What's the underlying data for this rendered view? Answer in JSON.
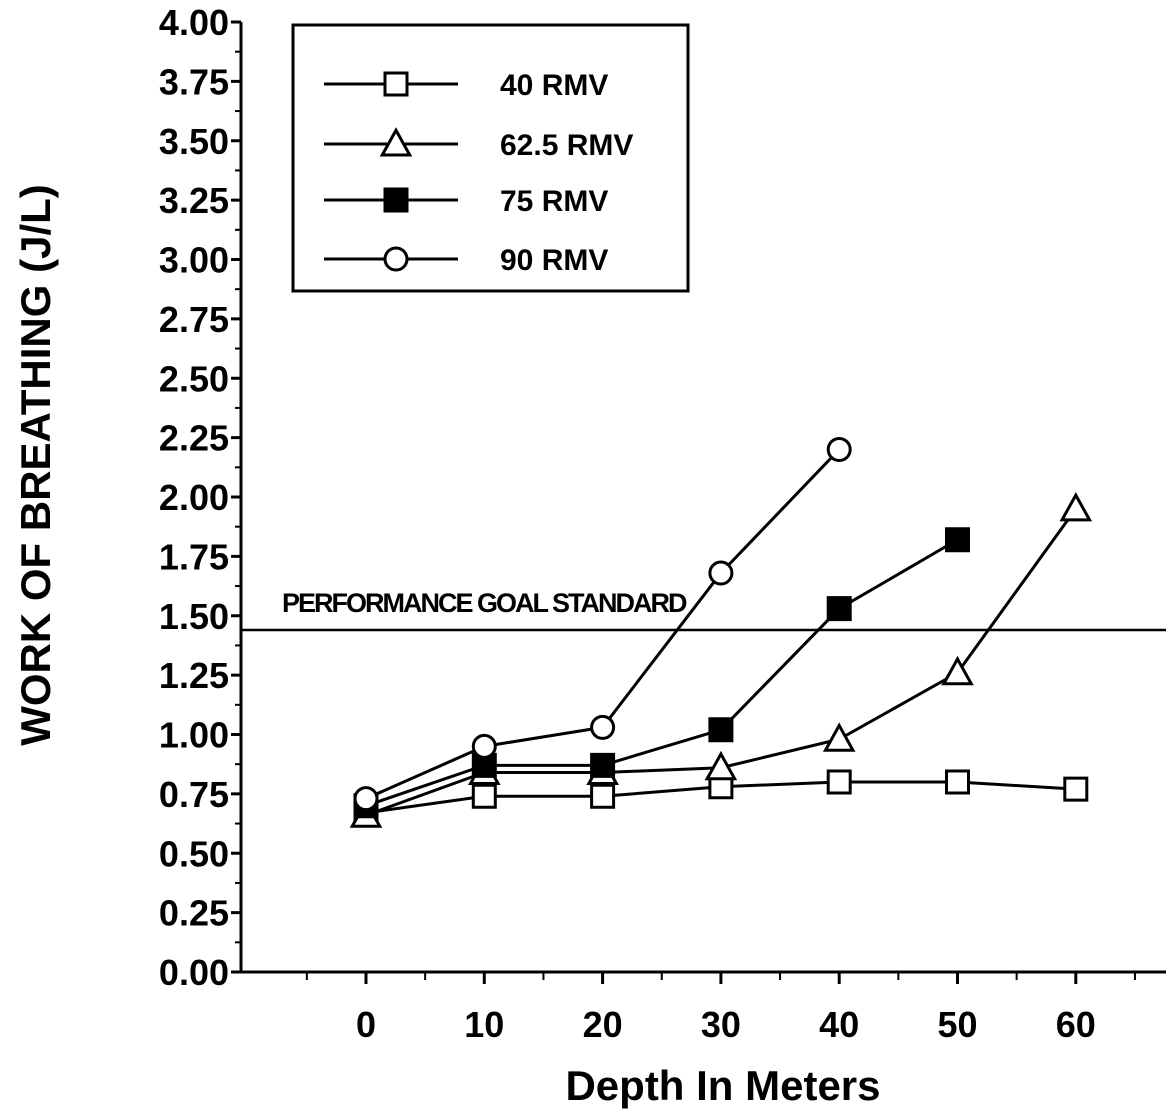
{
  "chart_data": {
    "type": "line",
    "ylabel": "WORK OF BREATHING (J/L)",
    "xlabel": "Depth In Meters",
    "ylim": [
      0,
      4
    ],
    "yticks": [
      "0.00",
      "0.25",
      "0.50",
      "0.75",
      "1.00",
      "1.25",
      "1.50",
      "1.75",
      "2.00",
      "2.25",
      "2.50",
      "2.75",
      "3.00",
      "3.25",
      "3.50",
      "3.75",
      "4.00"
    ],
    "xticks": [
      "0",
      "10",
      "20",
      "30",
      "40",
      "50",
      "60"
    ],
    "xlim": [
      -10,
      66
    ],
    "grid": false,
    "legend_position": "top-left",
    "series": [
      {
        "name": "40 RMV",
        "marker": "square-open",
        "x": [
          0,
          10,
          20,
          30,
          40,
          50,
          60
        ],
        "y": [
          0.67,
          0.74,
          0.74,
          0.78,
          0.8,
          0.8,
          0.77
        ]
      },
      {
        "name": "62.5 RMV",
        "marker": "triangle-open",
        "x": [
          0,
          10,
          20,
          30,
          40,
          50,
          60
        ],
        "y": [
          0.66,
          0.84,
          0.84,
          0.86,
          0.98,
          1.26,
          1.95
        ]
      },
      {
        "name": "75 RMV",
        "marker": "square-filled",
        "x": [
          0,
          10,
          20,
          30,
          40,
          50
        ],
        "y": [
          0.7,
          0.87,
          0.87,
          1.02,
          1.53,
          1.82
        ]
      },
      {
        "name": "90 RMV",
        "marker": "circle-open",
        "x": [
          0,
          10,
          20,
          30,
          40
        ],
        "y": [
          0.73,
          0.95,
          1.03,
          1.68,
          2.2
        ]
      }
    ],
    "reference_line": {
      "label": "PERFORMANCE GOAL STANDARD",
      "y": 1.44
    }
  }
}
